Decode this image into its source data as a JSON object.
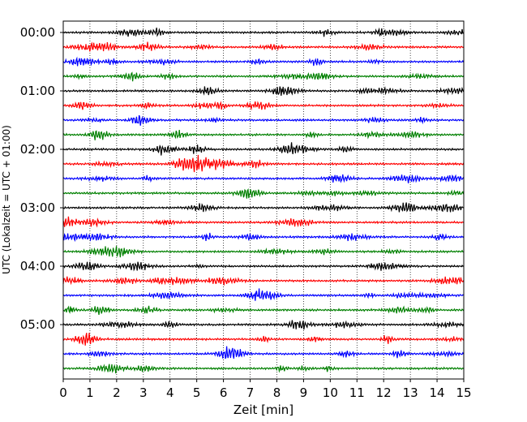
{
  "chart_data": {
    "type": "line",
    "title": "",
    "xlabel": "Zeit  [min]",
    "ylabel": "UTC (Lokalzeit = UTC + 01:00)",
    "xlim": [
      0,
      15
    ],
    "x_ticks": [
      "0",
      "1",
      "2",
      "3",
      "4",
      "5",
      "6",
      "7",
      "8",
      "9",
      "10",
      "11",
      "12",
      "13",
      "14",
      "15"
    ],
    "y_ticks": [
      "00:00",
      "01:00",
      "02:00",
      "03:00",
      "04:00",
      "05:00"
    ],
    "grid": "vertical dotted at each minute",
    "trace_interval_min": 15,
    "trace_count": 24,
    "trace_colors": [
      "#000000",
      "#ff0000",
      "#0000ff",
      "#008000"
    ]
  }
}
